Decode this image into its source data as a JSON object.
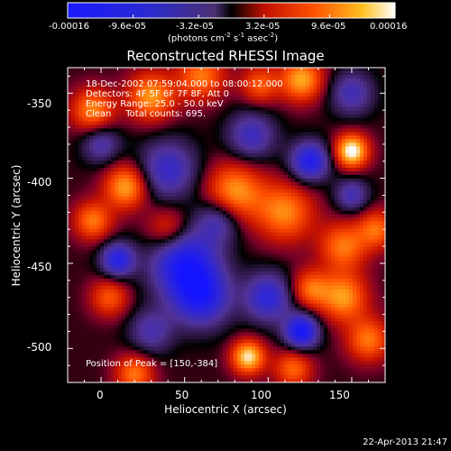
{
  "chart_data": {
    "type": "heatmap",
    "title": "Reconstructed RHESSI Image",
    "xlabel": "Heliocentric X (arcsec)",
    "ylabel": "Heliocentric Y (arcsec)",
    "xlim": [
      -20,
      170
    ],
    "ylim": [
      -520,
      -335
    ],
    "x_ticks": [
      0,
      50,
      100,
      150
    ],
    "y_ticks": [
      -350,
      -400,
      -450,
      -500
    ],
    "colorbar": {
      "min": -0.00016,
      "max": 0.00016,
      "tick_labels": [
        "-0.00016",
        "-9.6e-05",
        "-3.2e-05",
        "3.2e-05",
        "9.6e-05",
        "0.00016"
      ],
      "tick_values": [
        -0.00016,
        -9.6e-05,
        -3.2e-05,
        3.2e-05,
        9.6e-05,
        0.00016
      ],
      "units_label": "(photons cm",
      "units_sup1": "-2",
      "units_mid": " s",
      "units_sup2": "-1",
      "units_end": " asec",
      "units_sup3": "-2",
      "units_close": ")"
    },
    "annotations": {
      "line1": "18-Dec-2002 07:59:04.000 to 08:00:12.000",
      "line2": "Detectors: 4F 5F 6F 7F 8F, Att 0",
      "line3": "Energy Range: 25.0 - 50.0 keV",
      "line4": "Clean     Total counts: 695.",
      "peak": "Position of Peak = [150,-384]"
    },
    "peak": [
      150,
      -384
    ],
    "blobs": [
      {
        "x": 150,
        "y": -384,
        "amp": 1.0,
        "s": 7
      },
      {
        "x": 88,
        "y": -505,
        "amp": 0.9,
        "s": 7
      },
      {
        "x": 120,
        "y": -342,
        "amp": 0.75,
        "s": 9
      },
      {
        "x": 30,
        "y": -352,
        "amp": 0.7,
        "s": 10
      },
      {
        "x": -5,
        "y": -360,
        "amp": 0.65,
        "s": 9
      },
      {
        "x": 60,
        "y": -340,
        "amp": 0.6,
        "s": 10
      },
      {
        "x": 15,
        "y": -405,
        "amp": 0.75,
        "s": 9
      },
      {
        "x": -5,
        "y": -425,
        "amp": 0.6,
        "s": 8
      },
      {
        "x": 80,
        "y": -408,
        "amp": 0.7,
        "s": 12
      },
      {
        "x": 110,
        "y": -420,
        "amp": 0.65,
        "s": 12
      },
      {
        "x": 145,
        "y": -440,
        "amp": 0.6,
        "s": 10
      },
      {
        "x": 165,
        "y": -430,
        "amp": 0.55,
        "s": 8
      },
      {
        "x": 145,
        "y": -470,
        "amp": 0.7,
        "s": 10
      },
      {
        "x": 160,
        "y": -495,
        "amp": 0.6,
        "s": 9
      },
      {
        "x": 125,
        "y": -465,
        "amp": 0.55,
        "s": 8
      },
      {
        "x": 5,
        "y": -470,
        "amp": 0.5,
        "s": 8
      },
      {
        "x": 20,
        "y": -515,
        "amp": 0.6,
        "s": 8
      },
      {
        "x": 115,
        "y": -512,
        "amp": 0.55,
        "s": 8
      },
      {
        "x": 40,
        "y": -430,
        "amp": 0.45,
        "s": 9
      },
      {
        "x": 95,
        "y": -345,
        "amp": 0.5,
        "s": 8
      },
      {
        "x": 50,
        "y": -450,
        "amp": -0.9,
        "s": 14
      },
      {
        "x": 60,
        "y": -470,
        "amp": -0.8,
        "s": 12
      },
      {
        "x": 10,
        "y": -448,
        "amp": -0.8,
        "s": 7
      },
      {
        "x": 120,
        "y": -490,
        "amp": -1.0,
        "s": 7
      },
      {
        "x": 125,
        "y": -390,
        "amp": -0.85,
        "s": 8
      },
      {
        "x": 40,
        "y": -395,
        "amp": -0.6,
        "s": 12
      },
      {
        "x": 100,
        "y": -470,
        "amp": -0.7,
        "s": 10
      },
      {
        "x": 90,
        "y": -375,
        "amp": -0.55,
        "s": 10
      },
      {
        "x": 150,
        "y": -350,
        "amp": -0.5,
        "s": 9
      },
      {
        "x": 150,
        "y": -410,
        "amp": -0.5,
        "s": 7
      },
      {
        "x": 70,
        "y": -425,
        "amp": -0.5,
        "s": 9
      },
      {
        "x": 30,
        "y": -490,
        "amp": -0.45,
        "s": 9
      },
      {
        "x": 0,
        "y": -380,
        "amp": -0.45,
        "s": 8
      }
    ]
  },
  "footer": {
    "timestamp": "22-Apr-2013 21:47"
  }
}
